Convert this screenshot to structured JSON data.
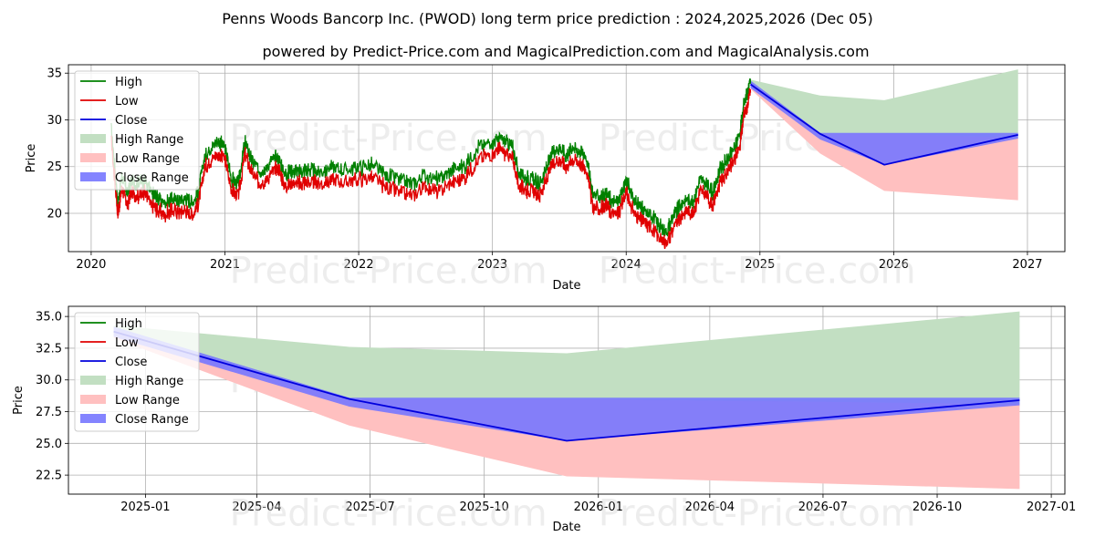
{
  "title": "Penns Woods Bancorp Inc. (PWOD) long term price prediction : 2024,2025,2026 (Dec 05)",
  "subtitle": "powered by Predict-Price.com and MagicalPrediction.com and MagicalAnalysis.com",
  "watermark": "Predict-Price.com",
  "colors": {
    "high": "#008000",
    "low": "#e00000",
    "close": "#0000dd",
    "high_range": "#c2dfc2",
    "low_range": "#ffc0c0",
    "close_range": "#7777ff"
  },
  "legend": [
    "High",
    "Low",
    "Close",
    "High Range",
    "Low Range",
    "Close Range"
  ],
  "chart_data": [
    {
      "type": "line",
      "name": "history",
      "xlabel": "Date",
      "ylabel": "Price",
      "xlim": [
        2019.83,
        2027.28
      ],
      "ylim": [
        15.9,
        35.9
      ],
      "x_ticks": [
        2020,
        2021,
        2022,
        2023,
        2024,
        2025,
        2026,
        2027
      ],
      "x_tick_labels": [
        "2020",
        "2021",
        "2022",
        "2023",
        "2024",
        "2025",
        "2026",
        "2027"
      ],
      "y_ticks": [
        20,
        25,
        30,
        35
      ],
      "y_tick_labels": [
        "20",
        "25",
        "30",
        "35"
      ],
      "grid": true,
      "legend_position": "upper-left",
      "history": {
        "x": [
          2020.15,
          2020.2,
          2020.23,
          2020.27,
          2020.3,
          2020.35,
          2020.4,
          2020.45,
          2020.5,
          2020.55,
          2020.6,
          2020.65,
          2020.7,
          2020.75,
          2020.8,
          2020.85,
          2020.9,
          2020.95,
          2021.0,
          2021.05,
          2021.1,
          2021.15,
          2021.2,
          2021.25,
          2021.3,
          2021.35,
          2021.4,
          2021.45,
          2021.5,
          2021.55,
          2021.6,
          2021.65,
          2021.7,
          2021.8,
          2021.9,
          2022.0,
          2022.1,
          2022.2,
          2022.3,
          2022.4,
          2022.5,
          2022.6,
          2022.7,
          2022.8,
          2022.9,
          2023.0,
          2023.05,
          2023.1,
          2023.15,
          2023.2,
          2023.25,
          2023.3,
          2023.35,
          2023.4,
          2023.45,
          2023.5,
          2023.55,
          2023.6,
          2023.65,
          2023.7,
          2023.75,
          2023.8,
          2023.85,
          2023.9,
          2023.95,
          2024.0,
          2024.05,
          2024.1,
          2024.15,
          2024.2,
          2024.25,
          2024.3,
          2024.35,
          2024.4,
          2024.45,
          2024.5,
          2024.55,
          2024.6,
          2024.65,
          2024.7,
          2024.75,
          2024.8,
          2024.85,
          2024.88,
          2024.9,
          2024.93
        ],
        "close": [
          28.5,
          20.5,
          23.5,
          21.5,
          23.0,
          22.5,
          23.0,
          21.5,
          21.0,
          20.5,
          21.0,
          20.8,
          21.0,
          20.5,
          21.5,
          25.5,
          26.5,
          27.0,
          26.5,
          23.0,
          22.5,
          27.0,
          25.0,
          24.0,
          24.0,
          25.0,
          25.5,
          23.5,
          24.0,
          23.8,
          24.0,
          24.0,
          23.8,
          24.2,
          24.0,
          24.3,
          24.5,
          23.5,
          23.0,
          22.5,
          23.5,
          23.0,
          24.0,
          24.5,
          26.5,
          27.0,
          27.5,
          27.0,
          26.5,
          23.5,
          23.2,
          23.0,
          22.5,
          24.0,
          26.0,
          26.5,
          25.5,
          26.5,
          26.0,
          25.5,
          21.5,
          21.0,
          21.5,
          20.5,
          20.8,
          23.0,
          21.0,
          20.0,
          19.5,
          19.0,
          18.0,
          17.5,
          19.0,
          20.0,
          21.0,
          20.5,
          23.0,
          22.5,
          21.5,
          24.0,
          25.0,
          26.0,
          28.0,
          31.0,
          32.0,
          33.5
        ]
      },
      "forecast": {
        "x": [
          2024.93,
          2025.45,
          2025.93,
          2026.93
        ],
        "close": [
          33.8,
          28.5,
          25.2,
          28.4
        ],
        "high_range": {
          "upper": [
            34.3,
            32.6,
            32.1,
            35.4
          ],
          "lower": [
            33.6,
            27.8,
            25.2,
            27.9
          ]
        },
        "low_range": {
          "upper": [
            34.0,
            28.5,
            28.5,
            28.1
          ],
          "lower": [
            33.3,
            26.4,
            22.4,
            21.4
          ]
        },
        "close_range": {
          "upper": [
            34.2,
            28.6,
            28.6,
            28.6
          ],
          "lower": [
            33.4,
            27.9,
            25.2,
            28.0
          ]
        }
      }
    },
    {
      "type": "area",
      "name": "forecast-detail",
      "xlabel": "Date",
      "ylabel": "Price",
      "xlim": [
        2024.83,
        2027.03
      ],
      "ylim": [
        21.0,
        35.8
      ],
      "x_ticks": [
        2025.0,
        2025.246,
        2025.496,
        2025.748,
        2026.0,
        2026.246,
        2026.496,
        2026.748,
        2027.0
      ],
      "x_tick_labels": [
        "2025-01",
        "2025-04",
        "2025-07",
        "2025-10",
        "2026-01",
        "2026-04",
        "2026-07",
        "2026-10",
        "2027-01"
      ],
      "y_ticks": [
        22.5,
        25.0,
        27.5,
        30.0,
        32.5,
        35.0
      ],
      "y_tick_labels": [
        "22.5",
        "25.0",
        "27.5",
        "30.0",
        "32.5",
        "35.0"
      ],
      "grid": true,
      "legend_position": "upper-left",
      "forecast": {
        "x": [
          2024.93,
          2025.45,
          2025.93,
          2026.93
        ],
        "close": [
          33.8,
          28.5,
          25.2,
          28.4
        ],
        "high_range": {
          "upper": [
            34.3,
            32.6,
            32.1,
            35.4
          ],
          "lower": [
            33.6,
            27.8,
            25.2,
            27.9
          ]
        },
        "low_range": {
          "upper": [
            34.0,
            28.5,
            28.5,
            28.1
          ],
          "lower": [
            33.3,
            26.4,
            22.4,
            21.4
          ]
        },
        "close_range": {
          "upper": [
            34.2,
            28.6,
            28.6,
            28.6
          ],
          "lower": [
            33.4,
            27.9,
            25.2,
            28.0
          ]
        }
      }
    }
  ]
}
